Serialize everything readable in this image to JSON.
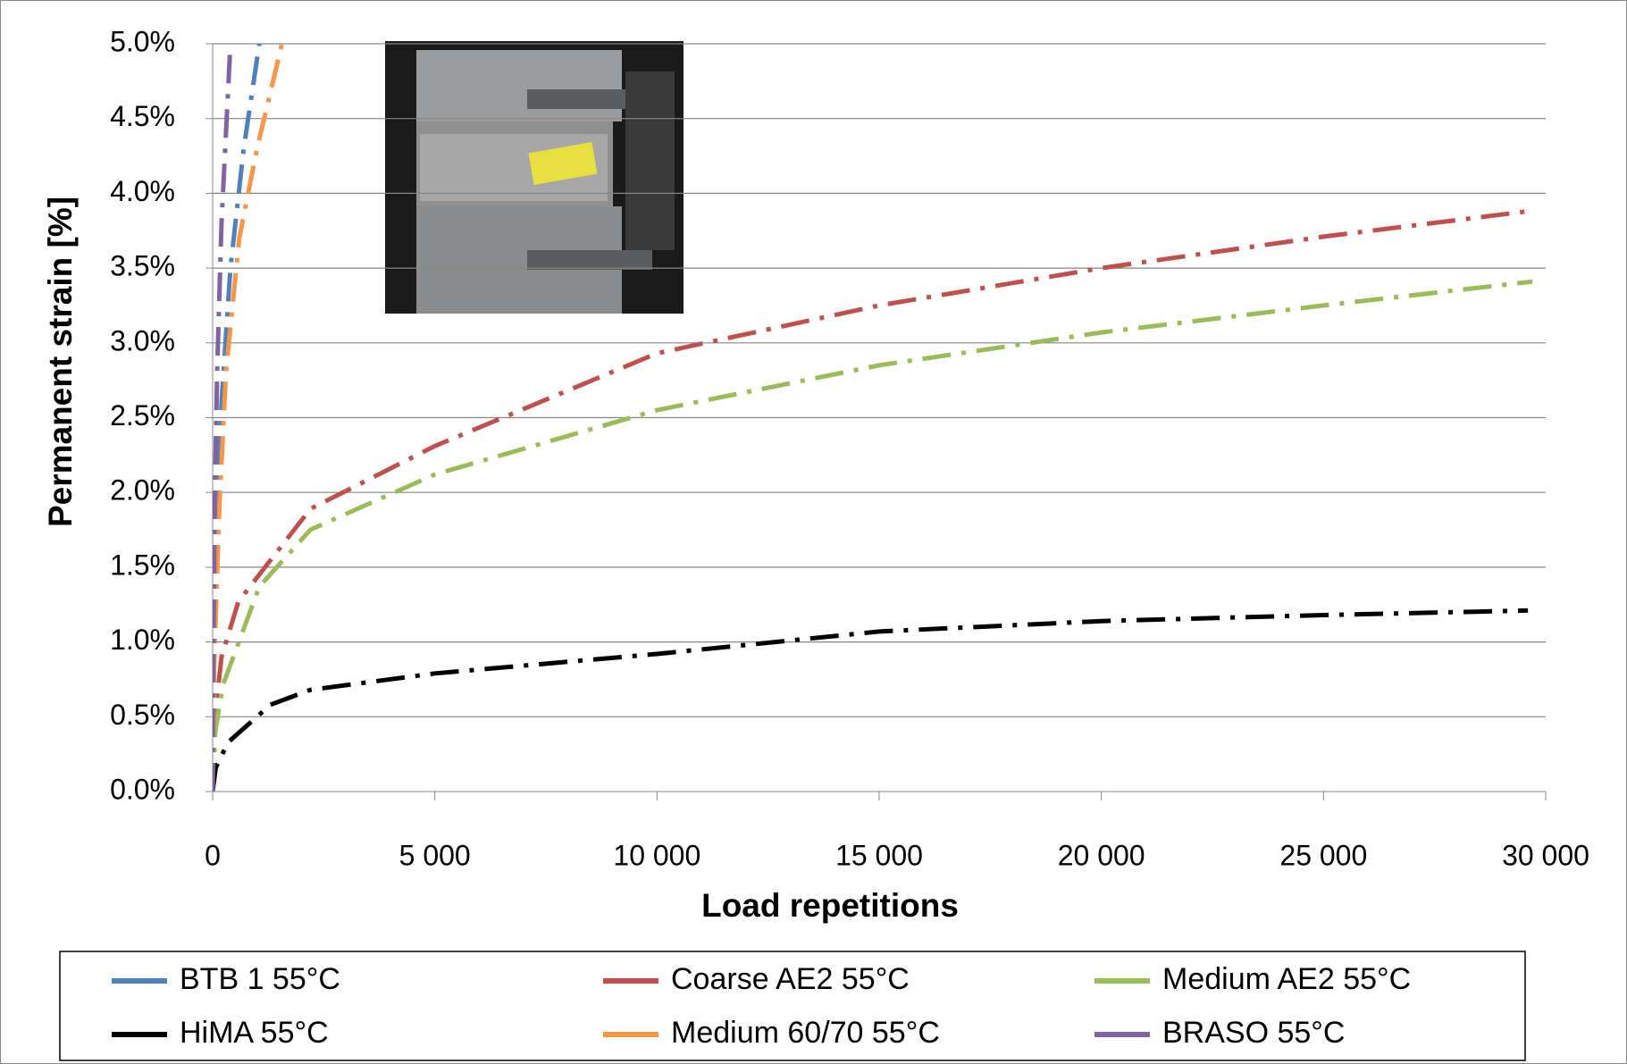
{
  "chart_data": {
    "type": "line",
    "xlabel": "Load repetitions",
    "ylabel": "Permanent strain [%]",
    "xlim": [
      0,
      30000
    ],
    "ylim": [
      0,
      5
    ],
    "xticks": [
      0,
      {
        "value": 5000,
        "label": "5 000"
      },
      {
        "value": 10000,
        "label": "10 000"
      },
      {
        "value": 15000,
        "label": "15 000"
      },
      {
        "value": 20000,
        "label": "20 000"
      },
      {
        "value": 25000,
        "label": "25 000"
      },
      {
        "value": 30000,
        "label": "30 000"
      }
    ],
    "yticks": [
      {
        "value": 0,
        "label": "0.0%"
      },
      {
        "value": 0.5,
        "label": "0.5%"
      },
      {
        "value": 1,
        "label": "1.0%"
      },
      {
        "value": 1.5,
        "label": "1.5%"
      },
      {
        "value": 2,
        "label": "2.0%"
      },
      {
        "value": 2.5,
        "label": "2.5%"
      },
      {
        "value": 3,
        "label": "3.0%"
      },
      {
        "value": 3.5,
        "label": "3.5%"
      },
      {
        "value": 4,
        "label": "4.0%"
      },
      {
        "value": 4.5,
        "label": "4.5%"
      },
      {
        "value": 5,
        "label": "5.0%"
      }
    ],
    "grid": true,
    "series": [
      {
        "name": "BTB 1 55°C",
        "color": "#4f81bd",
        "x": [
          0,
          20,
          100,
          200,
          400,
          700,
          1050
        ],
        "values": [
          0,
          0.7,
          1.8,
          2.6,
          3.5,
          4.3,
          5.0
        ]
      },
      {
        "name": "Coarse AE2  55°C",
        "color": "#c0504d",
        "x": [
          0,
          50,
          200,
          580,
          2200,
          5000,
          10000,
          15000,
          20000,
          25000,
          29600
        ],
        "values": [
          0,
          0.5,
          0.9,
          1.27,
          1.89,
          2.31,
          2.93,
          3.25,
          3.5,
          3.71,
          3.88
        ]
      },
      {
        "name": "Medium AE2 55°C",
        "color": "#9bbb59",
        "x": [
          0,
          60,
          230,
          1050,
          2200,
          5000,
          10000,
          15000,
          20000,
          25000,
          29700
        ],
        "values": [
          0,
          0.4,
          0.71,
          1.37,
          1.75,
          2.12,
          2.55,
          2.85,
          3.07,
          3.25,
          3.41
        ]
      },
      {
        "name": "HiMA 55°C",
        "color": "#000000",
        "x": [
          0,
          70,
          350,
          1300,
          2200,
          5000,
          10000,
          15000,
          20000,
          25000,
          29600
        ],
        "values": [
          0,
          0.16,
          0.33,
          0.58,
          0.68,
          0.79,
          0.92,
          1.07,
          1.14,
          1.18,
          1.21
        ]
      },
      {
        "name": "Medium 60/70 55°C",
        "color": "#f79646",
        "x": [
          0,
          30,
          150,
          300,
          600,
          1000,
          1560
        ],
        "values": [
          0,
          0.8,
          1.9,
          2.8,
          3.7,
          4.3,
          5.0
        ]
      },
      {
        "name": "BRASO 55°C",
        "color": "#8064a2",
        "x": [
          0,
          10,
          50,
          100,
          200,
          400
        ],
        "values": [
          0,
          0.7,
          2.0,
          2.8,
          3.8,
          5.0
        ]
      }
    ]
  }
}
